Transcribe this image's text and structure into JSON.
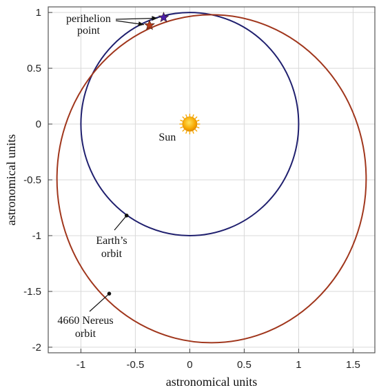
{
  "chart_data": {
    "type": "scatter",
    "xlabel": "astronomical units",
    "ylabel": "astronomical units",
    "xlim": [
      -1.3,
      1.7
    ],
    "ylim": [
      -2.05,
      1.05
    ],
    "xticks": [
      -1,
      -0.5,
      0,
      0.5,
      1,
      1.5
    ],
    "xtick_labels": [
      "-1",
      "-0.5",
      "0",
      "0.5",
      "1",
      "1.5"
    ],
    "yticks": [
      -2,
      -1.5,
      -1,
      -0.5,
      0,
      0.5,
      1
    ],
    "ytick_labels": [
      "-2",
      "-1.5",
      "-1",
      "-0.5",
      "0",
      "0.5",
      "1"
    ],
    "grid": true,
    "series": [
      {
        "kind": "ellipse",
        "center": [
          0,
          0
        ],
        "rx": 1.0,
        "ry": 1.0,
        "color": "#1f1f6e"
      },
      {
        "kind": "ellipse",
        "center": [
          0.2,
          -0.49
        ],
        "rx": 1.42,
        "ry": 1.47,
        "color": "#a0361c"
      }
    ],
    "sun": {
      "x": 0,
      "y": 0,
      "label": "Sun",
      "color": "#f7a800"
    },
    "stars": [
      {
        "x": -0.24,
        "y": 0.955,
        "color": "#4a1ea8"
      },
      {
        "x": -0.37,
        "y": 0.885,
        "color": "#b53c1c"
      }
    ],
    "annotations": [
      {
        "text_lines": [
          "perihelion",
          "point"
        ],
        "points_to": [
          [
            -0.24,
            0.955
          ],
          [
            -0.37,
            0.885
          ]
        ]
      },
      {
        "text_lines": [
          "Earth’s",
          "orbit"
        ],
        "points_to": [
          [
            -0.58,
            -0.82
          ]
        ]
      },
      {
        "text_lines": [
          "4660 Nereus",
          "orbit"
        ],
        "points_to": [
          [
            -0.74,
            -1.52
          ]
        ]
      }
    ]
  }
}
